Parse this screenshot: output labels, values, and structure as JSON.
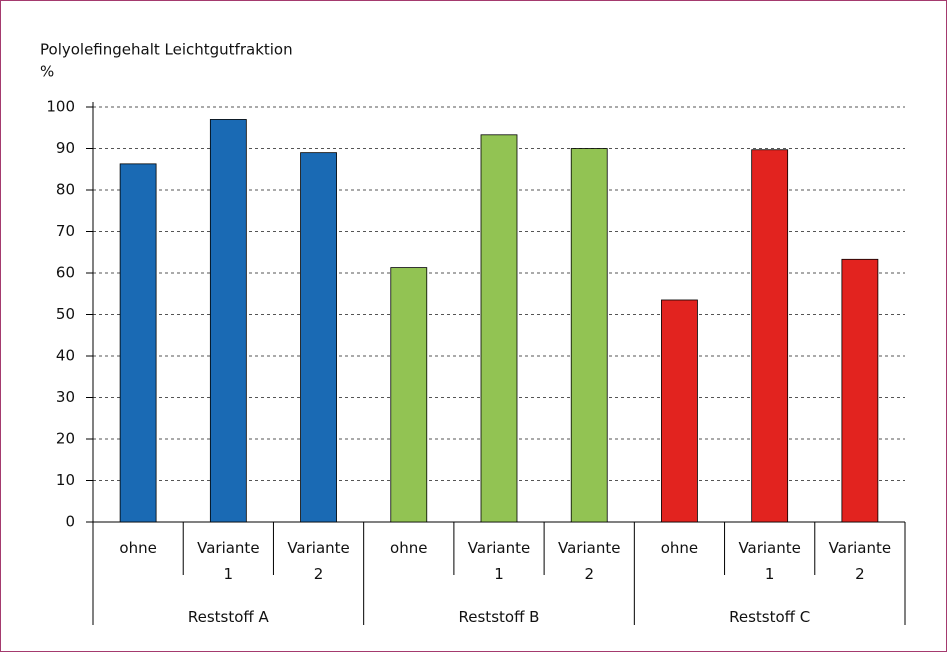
{
  "chart_data": {
    "type": "bar",
    "title": "Polyolefingehalt Leichtgutfraktion",
    "y_label": "%",
    "groups": [
      {
        "name": "Reststoff A",
        "color": "#1a6ab4",
        "categories": [
          "ohne",
          "Variante 1",
          "Variante 2"
        ],
        "values": [
          86.3,
          97,
          89
        ]
      },
      {
        "name": "Reststoff B",
        "color": "#92c353",
        "categories": [
          "ohne",
          "Variante 1",
          "Variante 2"
        ],
        "values": [
          61.3,
          93.3,
          90
        ]
      },
      {
        "name": "Reststoff C",
        "color": "#e2231f",
        "categories": [
          "ohne",
          "Variante 1",
          "Variante 2"
        ],
        "values": [
          53.5,
          89.7,
          63.3
        ]
      }
    ],
    "ylim": [
      0,
      100
    ],
    "yticks": [
      0,
      10,
      20,
      30,
      40,
      50,
      60,
      70,
      80,
      90,
      100
    ],
    "grid": true
  }
}
